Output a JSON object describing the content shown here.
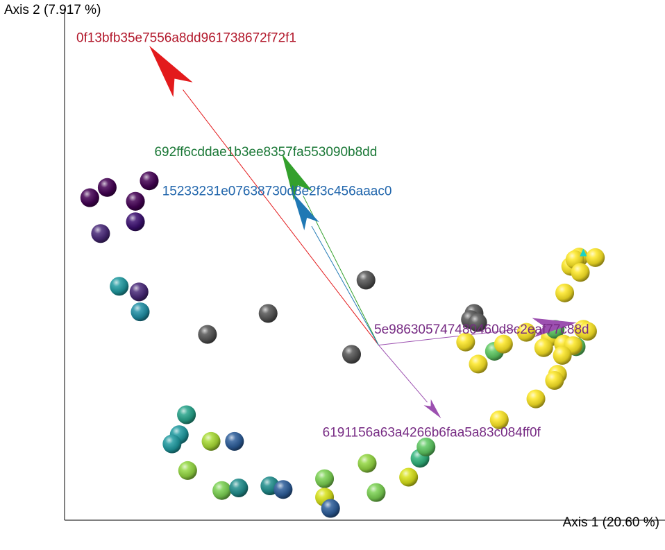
{
  "chart_data": {
    "type": "scatter",
    "title": "",
    "xlabel": "Axis 1 (20.60 %)",
    "ylabel": "Axis 2 (7.917 %)",
    "xlim": [
      0,
      100
    ],
    "ylim": [
      0,
      100
    ],
    "grid": false,
    "legend": "none",
    "points": [
      {
        "x": 6,
        "y": 56,
        "color": "#482878"
      },
      {
        "x": 4.2,
        "y": 63,
        "color": "#440154"
      },
      {
        "x": 7.1,
        "y": 65,
        "color": "#440154"
      },
      {
        "x": 14.1,
        "y": 66.3,
        "color": "#440154"
      },
      {
        "x": 11.8,
        "y": 62.3,
        "color": "#440154"
      },
      {
        "x": 11.8,
        "y": 58.3,
        "color": "#3b0f70"
      },
      {
        "x": 9.1,
        "y": 45.7,
        "color": "#1f9aa0"
      },
      {
        "x": 12.4,
        "y": 44.6,
        "color": "#482878"
      },
      {
        "x": 12.6,
        "y": 40.7,
        "color": "#1f8fa5"
      },
      {
        "x": 33.9,
        "y": 40.4,
        "color": "#555555"
      },
      {
        "x": 23.8,
        "y": 36.3,
        "color": "#555555"
      },
      {
        "x": 50.2,
        "y": 46.9,
        "color": "#555555"
      },
      {
        "x": 47.8,
        "y": 32.4,
        "color": "#555555"
      },
      {
        "x": 68.2,
        "y": 40.4,
        "color": "#555555"
      },
      {
        "x": 67.6,
        "y": 39.2,
        "color": "#555555"
      },
      {
        "x": 68.8,
        "y": 38.6,
        "color": "#555555"
      },
      {
        "x": 20.3,
        "y": 20.6,
        "color": "#26a38a"
      },
      {
        "x": 19.1,
        "y": 16.7,
        "color": "#1f9aa0"
      },
      {
        "x": 17.9,
        "y": 14.9,
        "color": "#1f9aa0"
      },
      {
        "x": 24.4,
        "y": 15.4,
        "color": "#a8db34"
      },
      {
        "x": 28.3,
        "y": 15.4,
        "color": "#2c5d9a"
      },
      {
        "x": 20.5,
        "y": 9.7,
        "color": "#93d741"
      },
      {
        "x": 26.2,
        "y": 5.8,
        "color": "#7ad151"
      },
      {
        "x": 29.0,
        "y": 6.3,
        "color": "#1f8d8c"
      },
      {
        "x": 34.2,
        "y": 6.7,
        "color": "#1f8d8c"
      },
      {
        "x": 36.4,
        "y": 6.0,
        "color": "#2c5d9a"
      },
      {
        "x": 43.3,
        "y": 8.1,
        "color": "#7ad151"
      },
      {
        "x": 43.3,
        "y": 4.5,
        "color": "#d8e219"
      },
      {
        "x": 44.3,
        "y": 2.3,
        "color": "#2c5d9a"
      },
      {
        "x": 50.4,
        "y": 11.1,
        "color": "#93d741"
      },
      {
        "x": 51.9,
        "y": 5.4,
        "color": "#7ad151"
      },
      {
        "x": 57.3,
        "y": 8.4,
        "color": "#d8e219"
      },
      {
        "x": 59.2,
        "y": 12.1,
        "color": "#2fb47c"
      },
      {
        "x": 60.2,
        "y": 14.3,
        "color": "#5ec962"
      },
      {
        "x": 72.4,
        "y": 19.6,
        "color": "#fde725"
      },
      {
        "x": 66.8,
        "y": 34.8,
        "color": "#fde725"
      },
      {
        "x": 71.6,
        "y": 33.0,
        "color": "#5ec962"
      },
      {
        "x": 73.1,
        "y": 34.4,
        "color": "#fde725"
      },
      {
        "x": 76.9,
        "y": 36.7,
        "color": "#fde725"
      },
      {
        "x": 80.9,
        "y": 35.8,
        "color": "#fde725"
      },
      {
        "x": 81.7,
        "y": 37.3,
        "color": "#5ec962"
      },
      {
        "x": 79.8,
        "y": 33.7,
        "color": "#fde725"
      },
      {
        "x": 83.1,
        "y": 34.4,
        "color": "#fde725"
      },
      {
        "x": 85.2,
        "y": 33.9,
        "color": "#5ec962"
      },
      {
        "x": 84.7,
        "y": 34.1,
        "color": "#fde725"
      },
      {
        "x": 86.4,
        "y": 37.3,
        "color": "#fde725"
      },
      {
        "x": 87.1,
        "y": 36.9,
        "color": "#fde725"
      },
      {
        "x": 82.9,
        "y": 32.2,
        "color": "#fde725"
      },
      {
        "x": 82.1,
        "y": 28.5,
        "color": "#fde725"
      },
      {
        "x": 81.6,
        "y": 27.3,
        "color": "#fde725"
      },
      {
        "x": 78.5,
        "y": 23.7,
        "color": "#fde725"
      },
      {
        "x": 68.9,
        "y": 30.5,
        "color": "#fde725"
      },
      {
        "x": 83.3,
        "y": 44.4,
        "color": "#fde725"
      },
      {
        "x": 84.3,
        "y": 49.6,
        "color": "#fde725"
      },
      {
        "x": 85.7,
        "y": 51.4,
        "color": "#fde725"
      },
      {
        "x": 88.4,
        "y": 51.3,
        "color": "#fde725"
      },
      {
        "x": 85.0,
        "y": 50.9,
        "color": "#fde725"
      },
      {
        "x": 85.9,
        "y": 48.4,
        "color": "#fde725"
      }
    ],
    "arrows": [
      {
        "label": "0f13bfb35e7556a8dd961738672f72f1",
        "x1": 52.3,
        "y1": 34.2,
        "x2": 14.1,
        "y2": 92.7,
        "color": "#e31a1c",
        "label_x": 0,
        "label_y": 94.4,
        "label_color": "#b2182b"
      },
      {
        "label": "692ff6cddae1b3ee8357fa553090b8dd",
        "x1": 52.3,
        "y1": 34.2,
        "x2": 36.2,
        "y2": 71.6,
        "color": "#33a02c",
        "label_x": 13.0,
        "label_y": 72.1,
        "label_color": "#1b7837"
      },
      {
        "label": "15233231e07638730d8e2f3c456aaac0",
        "x1": 52.3,
        "y1": 34.2,
        "x2": 38.0,
        "y2": 64.0,
        "color": "#1f78b4",
        "label_x": 14.3,
        "label_y": 64.4,
        "label_color": "#2166ac"
      },
      {
        "label": "5e986305747480460d8c2eaf77c88d",
        "x1": 52.3,
        "y1": 34.2,
        "x2": 85.3,
        "y2": 38.6,
        "color": "#9c50b0",
        "label_x": 49.6,
        "label_y": 37.4,
        "label_color": "#762a83"
      },
      {
        "label": "6191156a63a4266b6faa5a83c084ff0f",
        "x1": 52.3,
        "y1": 34.2,
        "x2": 62.7,
        "y2": 19.9,
        "color": "#9c50b0",
        "label_x": 41.0,
        "label_y": 17.3,
        "label_color": "#762a83"
      }
    ],
    "marker": {
      "x": 86.4,
      "y": 52.1,
      "color": "#19d3c5"
    }
  }
}
